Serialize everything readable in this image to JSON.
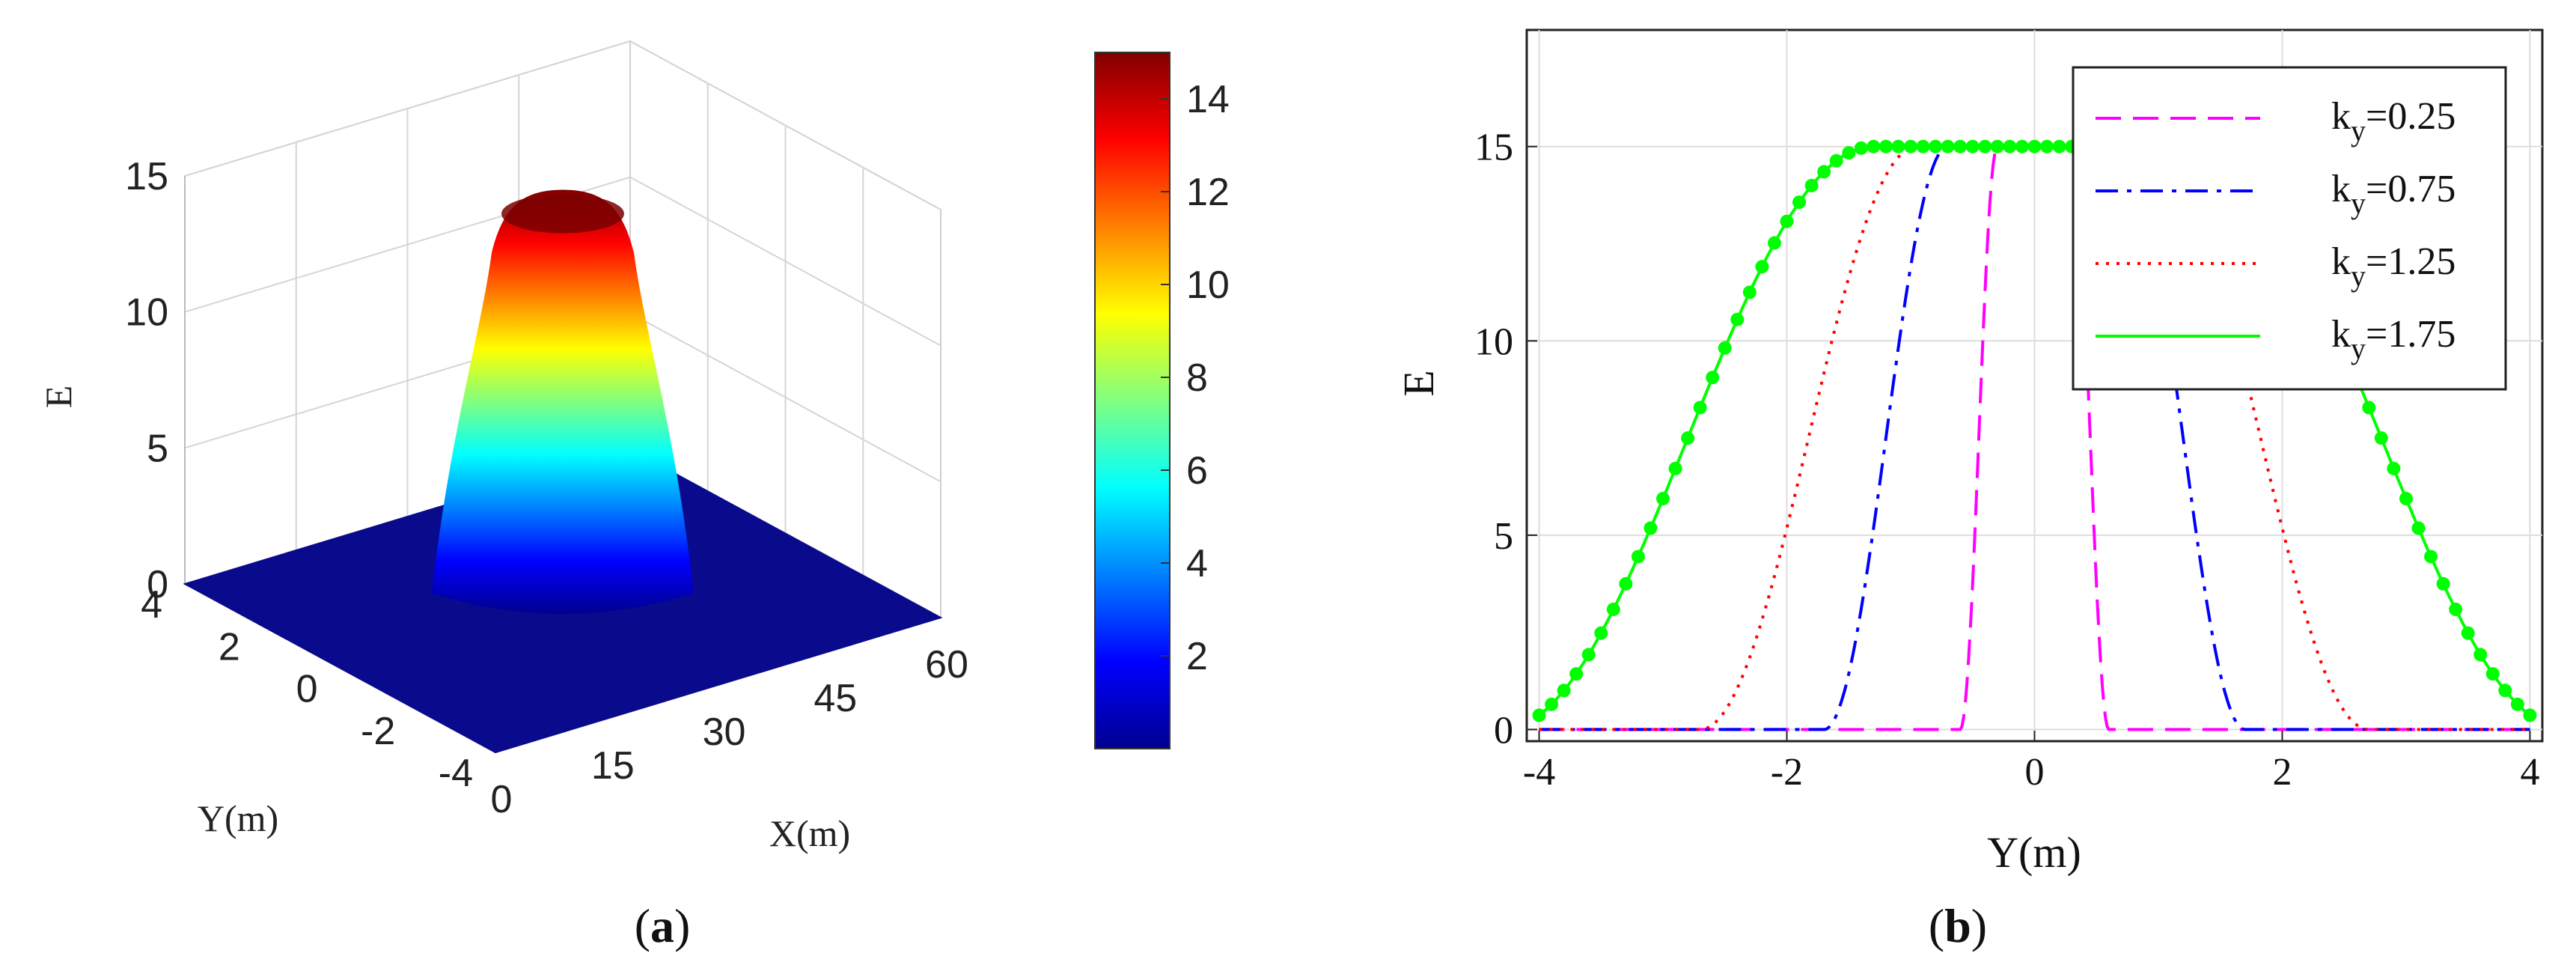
{
  "figure": {
    "panel_a_label_prefix": "(",
    "panel_a_letter": "a",
    "panel_a_label_suffix": ")",
    "panel_b_label_prefix": "(",
    "panel_b_letter": "b",
    "panel_b_label_suffix": ")"
  },
  "chart_data": [
    {
      "type": "surface",
      "panel": "a",
      "zlabel": "E",
      "xlabel": "X(m)",
      "ylabel": "Y(m)",
      "x_ticks": [
        "0",
        "15",
        "30",
        "45",
        "60"
      ],
      "y_ticks": [
        "-4",
        "-2",
        "0",
        "2",
        "4"
      ],
      "z_ticks": [
        "0",
        "5",
        "10",
        "15"
      ],
      "xlim": [
        0,
        60
      ],
      "ylim": [
        -4,
        4
      ],
      "zlim": [
        0,
        15
      ],
      "peak_value": 15,
      "peak_x": 30,
      "peak_y": 0,
      "colormap": "jet",
      "colorbar": {
        "range": [
          0,
          15
        ],
        "ticks": [
          "2",
          "4",
          "6",
          "8",
          "10",
          "12",
          "14"
        ],
        "colors": [
          "#00008f",
          "#0000ff",
          "#0080ff",
          "#00ffff",
          "#80ff80",
          "#ffff00",
          "#ff8000",
          "#ff0000",
          "#800000"
        ]
      }
    },
    {
      "type": "line",
      "panel": "b",
      "xlabel": "Y(m)",
      "ylabel": "E",
      "xlim": [
        -4.1,
        4.1
      ],
      "ylim": [
        -0.3,
        18
      ],
      "x_ticks": [
        "-4",
        "-2",
        "0",
        "2",
        "4"
      ],
      "y_ticks": [
        "0",
        "5",
        "10",
        "15"
      ],
      "grid": true,
      "legend_position": "top-right",
      "plateau": 15,
      "series": [
        {
          "label_base": "k",
          "label_sub": "y",
          "label_value": "=0.25",
          "color": "#ff00ff",
          "style": "dashed",
          "transition_half_width": 0.6,
          "transition_extent": 0.3
        },
        {
          "label_base": "k",
          "label_sub": "y",
          "label_value": "=0.75",
          "color": "#0000ff",
          "style": "dashdot",
          "transition_half_width": 1.7,
          "transition_extent": 1.0
        },
        {
          "label_base": "k",
          "label_sub": "y",
          "label_value": "=1.25",
          "color": "#ff0000",
          "style": "dotted",
          "transition_half_width": 2.7,
          "transition_extent": 1.75
        },
        {
          "label_base": "k",
          "label_sub": "y",
          "label_value": "=1.75",
          "color": "#00ff00",
          "style": "solid-markers",
          "transition_half_width": 4.3,
          "transition_extent": 3.0
        }
      ]
    }
  ]
}
